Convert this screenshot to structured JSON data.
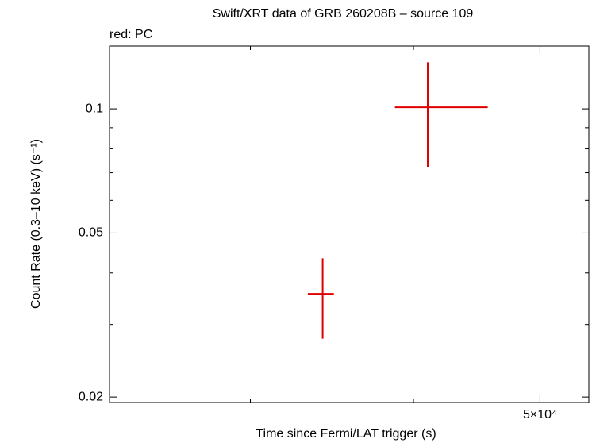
{
  "chart_data": {
    "type": "scatter",
    "title": "Swift/XRT data of GRB 260208B – source 109",
    "subtitle": "red: PC",
    "xlabel": "Time since Fermi/LAT trigger (s)",
    "ylabel": "Count Rate (0.3–10 keV) (s⁻¹)",
    "xscale": "log",
    "yscale": "log",
    "xlim": [
      23400,
      54500
    ],
    "ylim": [
      0.0194,
      0.142
    ],
    "xticks": [
      {
        "value": 50000,
        "label": "5×10⁴"
      }
    ],
    "xminorticks": [
      30000,
      40000
    ],
    "yticks": [
      0.1,
      0.05,
      0.02
    ],
    "yminorticks": [
      0.03,
      0.04,
      0.06,
      0.07,
      0.08,
      0.09
    ],
    "series": [
      {
        "name": "PC",
        "color": "#e00000",
        "x": [
          34080,
          41020
        ],
        "values": [
          0.0356,
          0.1009
        ],
        "xmin": [
          33200,
          38710
        ],
        "xmax": [
          34760,
          45600
        ],
        "ymin": [
          0.0277,
          0.0724
        ],
        "ymax": [
          0.0434,
          0.1297
        ]
      }
    ]
  }
}
